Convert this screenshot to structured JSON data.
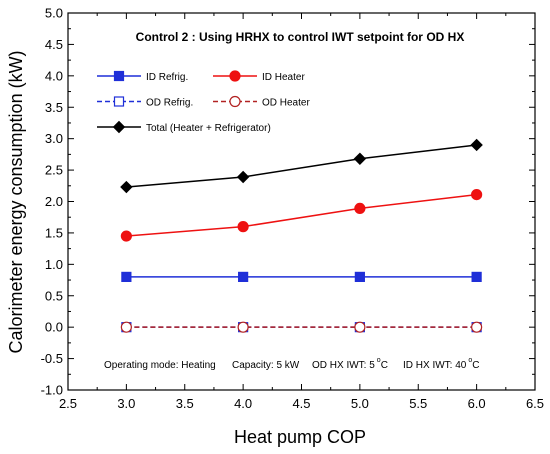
{
  "chart_data": {
    "type": "line",
    "title": "Control 2 : Using HRHX to control IWT setpoint for OD HX",
    "xlabel": "Heat pump COP",
    "ylabel": "Calorimeter energy consumption (kW)",
    "xlim": [
      2.5,
      6.5
    ],
    "ylim": [
      -1.0,
      5.0
    ],
    "xticks": [
      2.5,
      3.0,
      3.5,
      4.0,
      4.5,
      5.0,
      5.5,
      6.0,
      6.5
    ],
    "xtick_labels": [
      "2.5",
      "3.0",
      "3.5",
      "4.0",
      "4.5",
      "5.0",
      "5.5",
      "6.0",
      "6.5"
    ],
    "yticks": [
      -1.0,
      -0.5,
      0.0,
      0.5,
      1.0,
      1.5,
      2.0,
      2.5,
      3.0,
      3.5,
      4.0,
      4.5,
      5.0
    ],
    "ytick_labels": [
      "-1.0",
      "-0.5",
      "0.0",
      "0.5",
      "1.0",
      "1.5",
      "2.0",
      "2.5",
      "3.0",
      "3.5",
      "4.0",
      "4.5",
      "5.0"
    ],
    "x": [
      3.0,
      4.0,
      5.0,
      6.0
    ],
    "series": [
      {
        "name": "ID Refrig.",
        "values": [
          0.8,
          0.8,
          0.8,
          0.8
        ],
        "color": "#1f2fd8",
        "marker": "square-filled",
        "dash": "solid"
      },
      {
        "name": "ID Heater",
        "values": [
          1.45,
          1.6,
          1.89,
          2.11
        ],
        "color": "#ee1111",
        "marker": "circle-filled",
        "dash": "solid"
      },
      {
        "name": "OD Refrig.",
        "values": [
          0.0,
          0.0,
          0.0,
          0.0
        ],
        "color": "#1f2fd8",
        "marker": "square-open",
        "dash": "dashed"
      },
      {
        "name": "OD Heater",
        "values": [
          0.0,
          0.0,
          0.0,
          0.0
        ],
        "color": "#b22222",
        "marker": "circle-open",
        "dash": "dashed"
      },
      {
        "name": "Total (Heater + Refrigerator)",
        "values": [
          2.23,
          2.39,
          2.68,
          2.9
        ],
        "color": "#000000",
        "marker": "diamond-filled",
        "dash": "solid"
      }
    ],
    "legend_position": "top-left",
    "grid": false,
    "annotation": {
      "mode": "Operating mode: Heating",
      "capacity": "Capacity: 5 kW",
      "od_prefix": "OD HX IWT: 5",
      "od_unit": "C",
      "id_prefix": "ID HX IWT: 40",
      "id_unit": "C",
      "degree": "o"
    }
  }
}
